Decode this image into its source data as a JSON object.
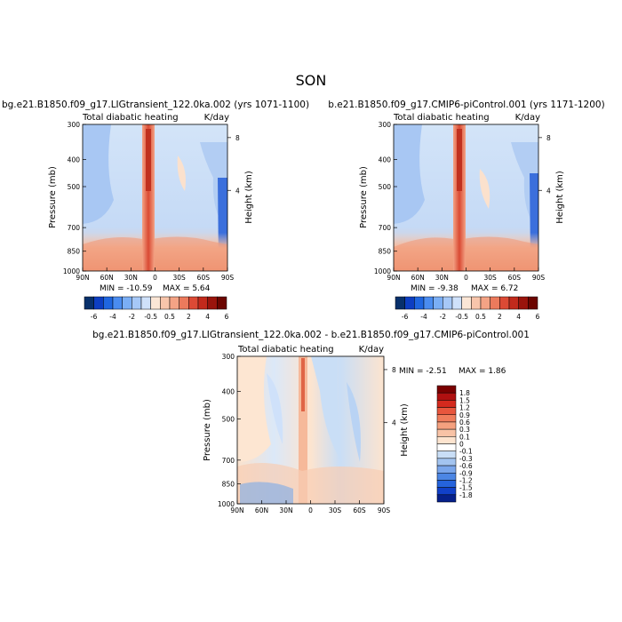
{
  "page_title": "SON",
  "chart_data": [
    {
      "type": "heatmap",
      "title": "bg.e21.B1850.f09_g17.LIGtransient_122.0ka.002 (yrs 1071-1100)",
      "subtitle_left": "Total diabatic heating",
      "subtitle_right": "K/day",
      "ylabel": "Pressure (mb)",
      "y2label": "Height (km)",
      "x_ticks": [
        "90N",
        "60N",
        "30N",
        "0",
        "30S",
        "60S",
        "90S"
      ],
      "y_ticks": [
        "300",
        "400",
        "500",
        "700",
        "850",
        "1000"
      ],
      "y2_ticks": [
        "8",
        "4"
      ],
      "min_label": "MIN = -10.59",
      "max_label": "MAX =   5.64",
      "colorbar_labels": [
        "-6",
        "-4",
        "-2",
        "-0.5",
        "0.5",
        "2",
        "4",
        "6"
      ],
      "colorbar_colors": [
        "#08306b",
        "#0d3ec2",
        "#1f66e0",
        "#4a8cf0",
        "#7aaef5",
        "#a6c8f7",
        "#cfe1fa",
        "#fbe6d6",
        "#f8c5ab",
        "#f4a385",
        "#ec7a5c",
        "#dc4a35",
        "#c22a1c",
        "#9a140c",
        "#6b0500"
      ]
    },
    {
      "type": "heatmap",
      "title": "b.e21.B1850.f09_g17.CMIP6-piControl.001 (yrs 1171-1200)",
      "subtitle_left": "Total diabatic heating",
      "subtitle_right": "K/day",
      "ylabel": "Pressure (mb)",
      "y2label": "Height (km)",
      "x_ticks": [
        "90N",
        "60N",
        "30N",
        "0",
        "30S",
        "60S",
        "90S"
      ],
      "y_ticks": [
        "300",
        "400",
        "500",
        "700",
        "850",
        "1000"
      ],
      "y2_ticks": [
        "8",
        "4"
      ],
      "min_label": "MIN = -9.38",
      "max_label": "MAX =   6.72",
      "colorbar_labels": [
        "-6",
        "-4",
        "-2",
        "-0.5",
        "0.5",
        "2",
        "4",
        "6"
      ],
      "colorbar_colors": [
        "#08306b",
        "#0d3ec2",
        "#1f66e0",
        "#4a8cf0",
        "#7aaef5",
        "#a6c8f7",
        "#cfe1fa",
        "#fbe6d6",
        "#f8c5ab",
        "#f4a385",
        "#ec7a5c",
        "#dc4a35",
        "#c22a1c",
        "#9a140c",
        "#6b0500"
      ]
    },
    {
      "type": "heatmap",
      "title": "bg.e21.B1850.f09_g17.LIGtransient_122.0ka.002 - b.e21.B1850.f09_g17.CMIP6-piControl.001",
      "subtitle_left": "Total diabatic heating",
      "subtitle_right": "K/day",
      "ylabel": "Pressure (mb)",
      "y2label": "Height (km)",
      "x_ticks": [
        "90N",
        "60N",
        "30N",
        "0",
        "30S",
        "60S",
        "90S"
      ],
      "y_ticks": [
        "300",
        "400",
        "500",
        "700",
        "850",
        "1000"
      ],
      "y2_ticks": [
        "8",
        "4"
      ],
      "min_label": "MIN =   -2.51",
      "max_label": "MAX =    1.86",
      "colorbar_labels": [
        "1.8",
        "1.5",
        "1.2",
        "0.9",
        "0.6",
        "0.3",
        "0.1",
        "0",
        "-0.1",
        "-0.3",
        "-0.6",
        "-0.9",
        "-1.2",
        "-1.5",
        "-1.8"
      ],
      "colorbar_colors": [
        "#7a0000",
        "#b01010",
        "#d42a1e",
        "#e8563d",
        "#f07d5c",
        "#f5a17f",
        "#f8c3a6",
        "#fde4cf",
        "#ffffff",
        "#c9def6",
        "#a3c4f0",
        "#7aa6eb",
        "#4c86e4",
        "#2563dc",
        "#1140c8",
        "#06208a"
      ]
    }
  ]
}
